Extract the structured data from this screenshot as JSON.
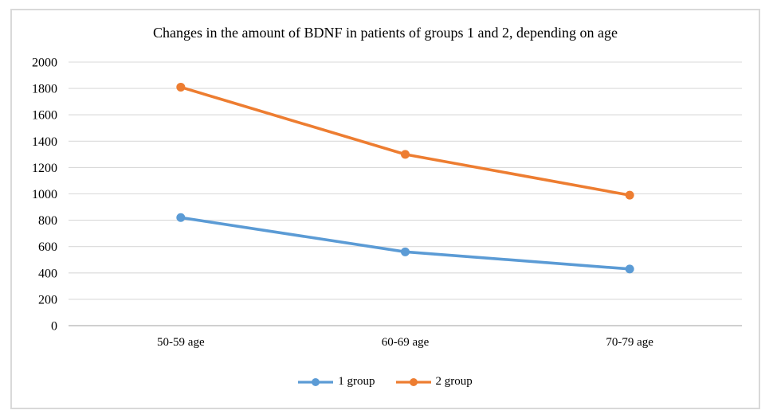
{
  "chart_data": {
    "type": "line",
    "title": "Changes in the amount of BDNF in patients of groups 1 and 2, depending on age",
    "categories": [
      "50-59 age",
      "60-69 age",
      "70-79 age"
    ],
    "series": [
      {
        "name": "1 group",
        "color": "#5B9BD5",
        "values": [
          820,
          560,
          430
        ]
      },
      {
        "name": "2 group",
        "color": "#ED7D31",
        "values": [
          1810,
          1300,
          990
        ]
      }
    ],
    "ylim": [
      0,
      2000
    ],
    "ytick_step": 200,
    "yticks": [
      0,
      200,
      400,
      600,
      800,
      1000,
      1200,
      1400,
      1600,
      1800,
      2000
    ],
    "grid": true,
    "legend_position": "bottom",
    "marker": "circle",
    "colors": {
      "gridline": "#D9D9D9",
      "axis_line": "#BFBFBF",
      "text": "#000000",
      "frame_border": "#D9D9D9",
      "background": "#FFFFFF"
    }
  }
}
